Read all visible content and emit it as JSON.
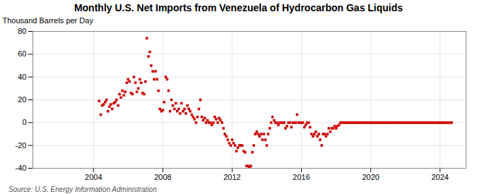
{
  "chart_data": {
    "type": "scatter",
    "title": "Monthly U.S. Net Imports from Venezuela of Hydrocarbon Gas Liquids",
    "ylabel": "Thousand Barrels per Day",
    "source": "Source: U.S. Energy Information Administration",
    "color": "#cc0000",
    "marker": "square",
    "grid": true,
    "xlim": [
      2000.5,
      2025.5
    ],
    "xticks": [
      2004,
      2008,
      2012,
      2016,
      2020,
      2024
    ],
    "ylim": [
      -40,
      80
    ],
    "yticks": [
      -40,
      -20,
      0,
      20,
      40,
      60,
      80
    ],
    "x": [
      2004.33,
      2004.42,
      2004.5,
      2004.58,
      2004.67,
      2004.75,
      2004.83,
      2004.92,
      2005.0,
      2005.08,
      2005.17,
      2005.25,
      2005.33,
      2005.42,
      2005.5,
      2005.58,
      2005.67,
      2005.75,
      2005.83,
      2005.92,
      2006.0,
      2006.08,
      2006.17,
      2006.25,
      2006.33,
      2006.42,
      2006.5,
      2006.58,
      2006.67,
      2006.75,
      2006.83,
      2006.92,
      2007.0,
      2007.08,
      2007.17,
      2007.25,
      2007.33,
      2007.42,
      2007.5,
      2007.58,
      2007.67,
      2007.75,
      2007.83,
      2007.92,
      2008.0,
      2008.08,
      2008.17,
      2008.25,
      2008.33,
      2008.42,
      2008.5,
      2008.58,
      2008.67,
      2008.75,
      2008.83,
      2008.92,
      2009.0,
      2009.08,
      2009.17,
      2009.25,
      2009.33,
      2009.42,
      2009.5,
      2009.58,
      2009.67,
      2009.75,
      2009.83,
      2009.92,
      2010.0,
      2010.08,
      2010.17,
      2010.25,
      2010.33,
      2010.42,
      2010.5,
      2010.58,
      2010.67,
      2010.75,
      2010.83,
      2010.92,
      2011.0,
      2011.08,
      2011.17,
      2011.25,
      2011.33,
      2011.42,
      2011.5,
      2011.58,
      2011.67,
      2011.75,
      2011.83,
      2011.92,
      2012.0,
      2012.08,
      2012.17,
      2012.25,
      2012.33,
      2012.42,
      2012.5,
      2012.58,
      2012.67,
      2012.75,
      2012.83,
      2012.92,
      2013.0,
      2013.08,
      2013.17,
      2013.25,
      2013.33,
      2013.42,
      2013.5,
      2013.58,
      2013.67,
      2013.75,
      2013.83,
      2013.92,
      2014.0,
      2014.08,
      2014.17,
      2014.25,
      2014.33,
      2014.42,
      2014.5,
      2014.58,
      2014.67,
      2014.75,
      2014.83,
      2014.92,
      2015.0,
      2015.08,
      2015.17,
      2015.25,
      2015.33,
      2015.42,
      2015.5,
      2015.58,
      2015.67,
      2015.75,
      2015.83,
      2015.92,
      2016.0,
      2016.08,
      2016.17,
      2016.25,
      2016.33,
      2016.42,
      2016.5,
      2016.58,
      2016.67,
      2016.75,
      2016.83,
      2016.92,
      2017.0,
      2017.08,
      2017.17,
      2017.25,
      2017.33,
      2017.42,
      2017.5,
      2017.58,
      2017.67,
      2017.75,
      2017.83,
      2017.92,
      2018.0,
      2018.08,
      2018.17,
      2018.25,
      2018.33,
      2018.42,
      2018.5,
      2018.58,
      2018.67,
      2018.75,
      2018.83,
      2018.92,
      2019.0,
      2019.08,
      2019.17,
      2019.25,
      2019.33,
      2019.42,
      2019.5,
      2019.58,
      2019.67,
      2019.75,
      2019.83,
      2019.92,
      2020.0,
      2020.08,
      2020.17,
      2020.25,
      2020.33,
      2020.42,
      2020.5,
      2020.58,
      2020.67,
      2020.75,
      2020.83,
      2020.92,
      2021.0,
      2021.08,
      2021.17,
      2021.25,
      2021.33,
      2021.42,
      2021.5,
      2021.58,
      2021.67,
      2021.75,
      2021.83,
      2021.92,
      2022.0,
      2022.08,
      2022.17,
      2022.25,
      2022.33,
      2022.42,
      2022.5,
      2022.58,
      2022.67,
      2022.75,
      2022.83,
      2022.92,
      2023.0,
      2023.08,
      2023.17,
      2023.25,
      2023.33,
      2023.42,
      2023.5,
      2023.58,
      2023.67,
      2023.75,
      2023.83,
      2023.92,
      2024.0,
      2024.08,
      2024.17,
      2024.25,
      2024.33,
      2024.42,
      2024.5,
      2024.58,
      2024.67
    ],
    "values": [
      19,
      7,
      15,
      16,
      18,
      20,
      10,
      14,
      16,
      12,
      17,
      18,
      20,
      15,
      25,
      22,
      28,
      24,
      27,
      35,
      38,
      36,
      26,
      25,
      40,
      35,
      27,
      30,
      38,
      35,
      26,
      25,
      36,
      74,
      58,
      62,
      50,
      45,
      38,
      45,
      38,
      28,
      12,
      10,
      11,
      18,
      40,
      38,
      28,
      10,
      20,
      15,
      12,
      17,
      10,
      12,
      8,
      17,
      10,
      12,
      8,
      15,
      12,
      10,
      7,
      5,
      3,
      0,
      5,
      12,
      20,
      5,
      2,
      4,
      0,
      2,
      0,
      0,
      -2,
      0,
      5,
      3,
      0,
      4,
      2,
      0,
      -5,
      -10,
      -12,
      -15,
      -18,
      -20,
      -15,
      -18,
      -20,
      -25,
      -22,
      -20,
      -20,
      -20,
      -25,
      -26,
      -38,
      -38,
      -40,
      -38,
      -26,
      -20,
      -10,
      -8,
      -10,
      -12,
      -10,
      -15,
      -10,
      -15,
      -20,
      -10,
      -5,
      0,
      5,
      2,
      0,
      0,
      -2,
      0,
      0,
      0,
      0,
      -5,
      -3,
      0,
      0,
      -4,
      0,
      0,
      0,
      7,
      0,
      0,
      0,
      0,
      -4,
      -2,
      0,
      0,
      -4,
      -10,
      -12,
      -10,
      -8,
      -12,
      -10,
      -15,
      -20,
      -10,
      -10,
      -12,
      -10,
      -5,
      -8,
      -5,
      -5,
      -3,
      -5,
      -3,
      -2,
      0,
      0,
      0,
      0,
      0,
      0,
      0,
      0,
      0,
      0,
      0,
      0,
      0,
      0,
      0,
      0,
      0,
      0,
      0,
      0,
      0,
      0,
      0,
      0,
      0,
      0,
      0,
      0,
      0,
      0,
      0,
      0,
      0,
      0,
      0,
      0,
      0,
      0,
      0,
      0,
      0,
      0,
      0,
      0,
      0,
      0,
      0,
      0,
      0,
      0,
      0,
      0,
      0,
      0,
      0,
      0,
      0,
      0,
      0,
      0,
      0,
      0,
      0,
      0,
      0,
      0,
      0,
      0,
      0,
      0,
      0,
      0,
      0,
      0,
      0,
      0,
      0,
      0
    ]
  }
}
